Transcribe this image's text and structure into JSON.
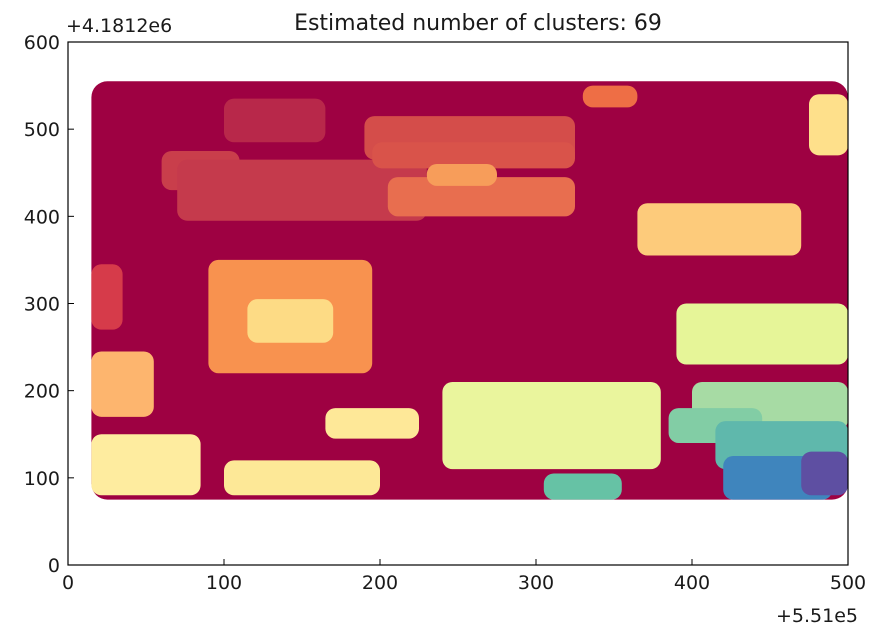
{
  "chart_data": {
    "type": "scatter",
    "title": "Estimated number of clusters: 69",
    "x_offset_label": "+5.51e5",
    "y_offset_label": "+4.1812e6",
    "xlim": [
      0,
      500
    ],
    "ylim": [
      0,
      600
    ],
    "x_ticks": [
      "0",
      "100",
      "200",
      "300",
      "400",
      "500"
    ],
    "y_ticks": [
      "0",
      "100",
      "200",
      "300",
      "400",
      "500",
      "600"
    ],
    "grid": false,
    "background_cluster": {
      "color": "#9e0142",
      "extent": {
        "x": [
          15,
          500
        ],
        "y": [
          75,
          555
        ]
      }
    },
    "clusters": [
      {
        "color": "#b8284a",
        "x": [
          100,
          165
        ],
        "y": [
          485,
          535
        ]
      },
      {
        "color": "#c93e4b",
        "x": [
          60,
          110
        ],
        "y": [
          430,
          475
        ]
      },
      {
        "color": "#c53a4c",
        "x": [
          70,
          230
        ],
        "y": [
          395,
          465
        ]
      },
      {
        "color": "#d44d4a",
        "x": [
          190,
          325
        ],
        "y": [
          465,
          515
        ]
      },
      {
        "color": "#d9534a",
        "x": [
          195,
          325
        ],
        "y": [
          455,
          485
        ]
      },
      {
        "color": "#e86e4f",
        "x": [
          205,
          325
        ],
        "y": [
          400,
          445
        ]
      },
      {
        "color": "#f79d5a",
        "x": [
          230,
          275
        ],
        "y": [
          435,
          460
        ]
      },
      {
        "color": "#ee6e45",
        "x": [
          330,
          365
        ],
        "y": [
          525,
          550
        ]
      },
      {
        "color": "#fee08b",
        "x": [
          475,
          500
        ],
        "y": [
          470,
          540
        ]
      },
      {
        "color": "#fdcb7b",
        "x": [
          365,
          470
        ],
        "y": [
          355,
          415
        ]
      },
      {
        "color": "#d63b4a",
        "x": [
          15,
          35
        ],
        "y": [
          270,
          345
        ]
      },
      {
        "color": "#f8924f",
        "x": [
          90,
          195
        ],
        "y": [
          220,
          350
        ]
      },
      {
        "color": "#fddb85",
        "x": [
          115,
          170
        ],
        "y": [
          255,
          305
        ]
      },
      {
        "color": "#fdb56e",
        "x": [
          15,
          55
        ],
        "y": [
          170,
          245
        ]
      },
      {
        "color": "#feec9f",
        "x": [
          15,
          85
        ],
        "y": [
          80,
          150
        ]
      },
      {
        "color": "#fde897",
        "x": [
          100,
          200
        ],
        "y": [
          80,
          120
        ]
      },
      {
        "color": "#fee898",
        "x": [
          165,
          225
        ],
        "y": [
          145,
          180
        ]
      },
      {
        "color": "#eaf59d",
        "x": [
          240,
          380
        ],
        "y": [
          110,
          210
        ]
      },
      {
        "color": "#e6f598",
        "x": [
          390,
          500
        ],
        "y": [
          230,
          300
        ]
      },
      {
        "color": "#a7dba4",
        "x": [
          400,
          500
        ],
        "y": [
          155,
          210
        ]
      },
      {
        "color": "#82cda5",
        "x": [
          385,
          445
        ],
        "y": [
          140,
          180
        ]
      },
      {
        "color": "#66c2a5",
        "x": [
          305,
          355
        ],
        "y": [
          75,
          105
        ]
      },
      {
        "color": "#5fb8ac",
        "x": [
          415,
          500
        ],
        "y": [
          110,
          165
        ]
      },
      {
        "color": "#3f85bd",
        "x": [
          420,
          490
        ],
        "y": [
          75,
          125
        ]
      },
      {
        "color": "#5e4fa2",
        "x": [
          470,
          500
        ],
        "y": [
          80,
          130
        ]
      }
    ]
  }
}
